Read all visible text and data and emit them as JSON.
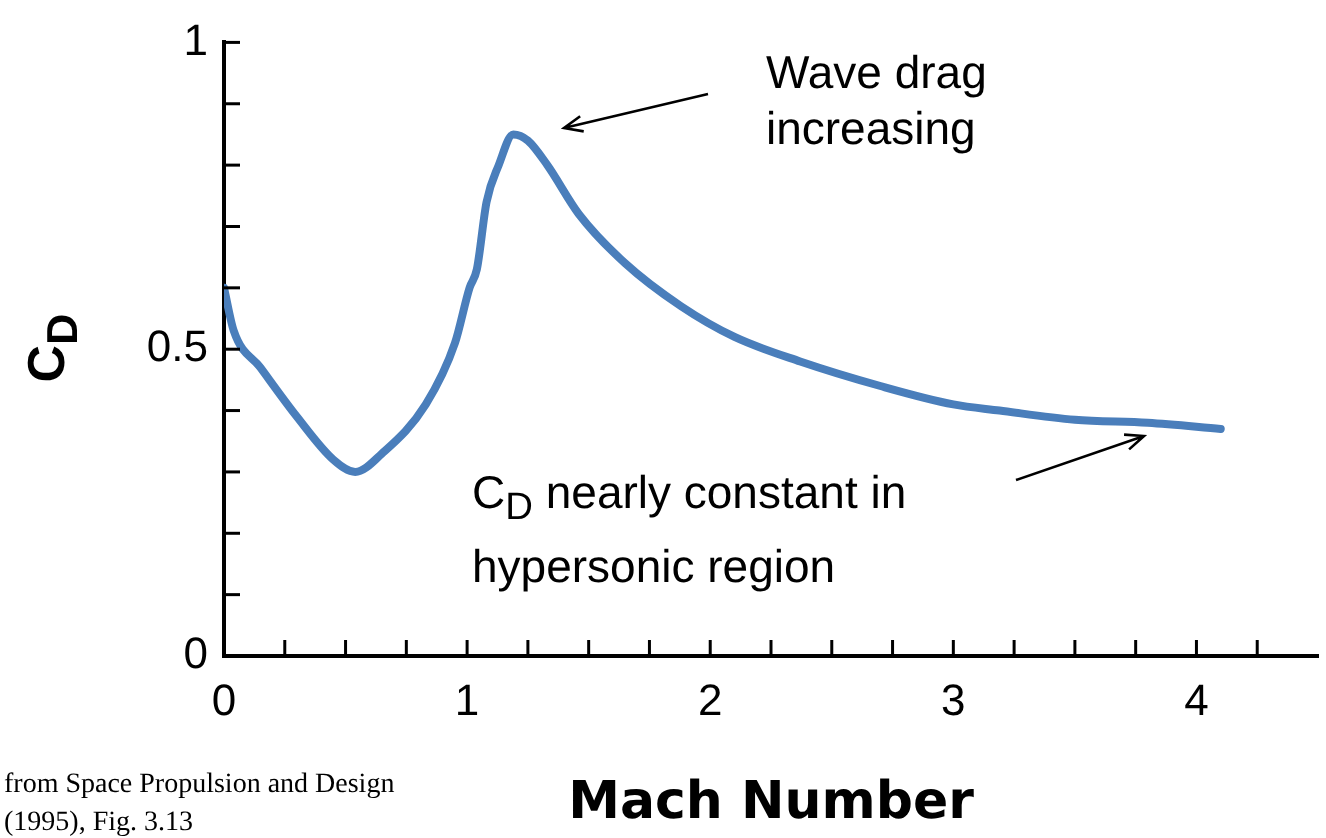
{
  "chart_data": {
    "type": "line",
    "xlabel": "Mach Number",
    "ylabel": "C$_{D}$",
    "xlim": [
      0,
      4.5
    ],
    "xticks": [
      0,
      {
        "value": 0.25,
        "label": null
      },
      {
        "value": 0.5,
        "label": null
      },
      {
        "value": 0.75,
        "label": null
      },
      1,
      {
        "value": 1.25,
        "label": null
      },
      {
        "value": 1.5,
        "label": null
      },
      {
        "value": 1.75,
        "label": null
      },
      2,
      {
        "value": 2.25,
        "label": null
      },
      {
        "value": 2.5,
        "label": null
      },
      {
        "value": 2.75,
        "label": null
      },
      3,
      {
        "value": 3.25,
        "label": null
      },
      {
        "value": 3.5,
        "label": null
      },
      {
        "value": 3.75,
        "label": null
      },
      4,
      {
        "value": 4.25,
        "label": null
      }
    ],
    "ylim": [
      0,
      1
    ],
    "yticks": [
      0,
      {
        "value": 0.1,
        "label": null
      },
      {
        "value": 0.2,
        "label": null
      },
      {
        "value": 0.3,
        "label": null
      },
      {
        "value": 0.4,
        "label": null
      },
      0.5,
      {
        "value": 0.6,
        "label": null
      },
      {
        "value": 0.7,
        "label": null
      },
      {
        "value": 0.8,
        "label": null
      },
      {
        "value": 0.9,
        "label": null
      },
      1
    ],
    "grid": false,
    "legend": false,
    "marker": "none",
    "series": [
      {
        "color": "#4a7ebb",
        "x": [
          0,
          0.04,
          0.15,
          0.3,
          0.45,
          0.54,
          0.65,
          0.83,
          0.95,
          1.01,
          1.04,
          1.08,
          1.13,
          1.19,
          1.25,
          1.33,
          1.46,
          1.65,
          1.88,
          2.1,
          2.37,
          2.7,
          3.0,
          3.19,
          3.5,
          3.8,
          4.1
        ],
        "values": [
          0.6,
          0.53,
          0.47,
          0.39,
          0.32,
          0.3,
          0.33,
          0.41,
          0.51,
          0.6,
          0.63,
          0.74,
          0.8,
          0.85,
          0.84,
          0.8,
          0.72,
          0.64,
          0.57,
          0.52,
          0.48,
          0.44,
          0.41,
          0.4,
          0.385,
          0.38,
          0.37
        ]
      }
    ],
    "annotations": [
      "Wave drag increasing",
      "C$_{D}$ nearly constant in hypersonic region",
      "from Space Propulsion and Design (1995), Fig. 3.13"
    ]
  }
}
